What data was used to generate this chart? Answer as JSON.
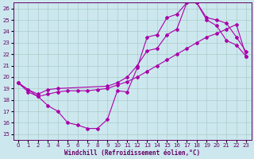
{
  "xlabel": "Windchill (Refroidissement éolien,°C)",
  "bg_color": "#cce8ee",
  "line_color": "#aa00aa",
  "xlim": [
    -0.5,
    23.5
  ],
  "ylim": [
    14.5,
    26.5
  ],
  "xticks": [
    0,
    1,
    2,
    3,
    4,
    5,
    6,
    7,
    8,
    9,
    10,
    11,
    12,
    13,
    14,
    15,
    16,
    17,
    18,
    19,
    20,
    21,
    22,
    23
  ],
  "yticks": [
    15,
    16,
    17,
    18,
    19,
    20,
    21,
    22,
    23,
    24,
    25,
    26
  ],
  "line1_x": [
    0,
    1,
    2,
    3,
    4,
    5,
    6,
    7,
    8,
    9,
    10,
    11,
    12,
    13,
    14,
    15,
    16,
    17,
    18,
    19,
    20,
    21,
    22,
    23
  ],
  "line1_y": [
    19.5,
    18.9,
    18.3,
    17.5,
    17.0,
    16.0,
    15.8,
    15.5,
    15.5,
    16.3,
    18.8,
    18.7,
    20.8,
    23.5,
    23.7,
    25.2,
    25.5,
    26.5,
    26.5,
    25.0,
    24.5,
    23.2,
    22.8,
    21.8
  ],
  "line2_x": [
    0,
    1,
    2,
    3,
    4,
    9,
    10,
    11,
    12,
    13,
    14,
    15,
    16,
    17,
    18,
    19,
    20,
    21,
    22,
    23
  ],
  "line2_y": [
    19.5,
    18.9,
    18.5,
    18.9,
    19.0,
    19.2,
    19.5,
    20.0,
    21.0,
    22.3,
    22.5,
    23.7,
    24.2,
    26.5,
    26.5,
    25.2,
    25.0,
    24.7,
    23.5,
    22.2
  ],
  "line3_x": [
    0,
    1,
    2,
    3,
    4,
    5,
    6,
    7,
    8,
    9,
    10,
    11,
    12,
    13,
    14,
    15,
    16,
    17,
    18,
    19,
    20,
    21,
    22,
    23
  ],
  "line3_y": [
    19.5,
    18.7,
    18.3,
    18.5,
    18.7,
    18.8,
    18.8,
    18.8,
    18.9,
    19.0,
    19.3,
    19.6,
    20.0,
    20.5,
    21.0,
    21.5,
    22.0,
    22.5,
    23.0,
    23.5,
    23.8,
    24.2,
    24.6,
    21.8
  ]
}
